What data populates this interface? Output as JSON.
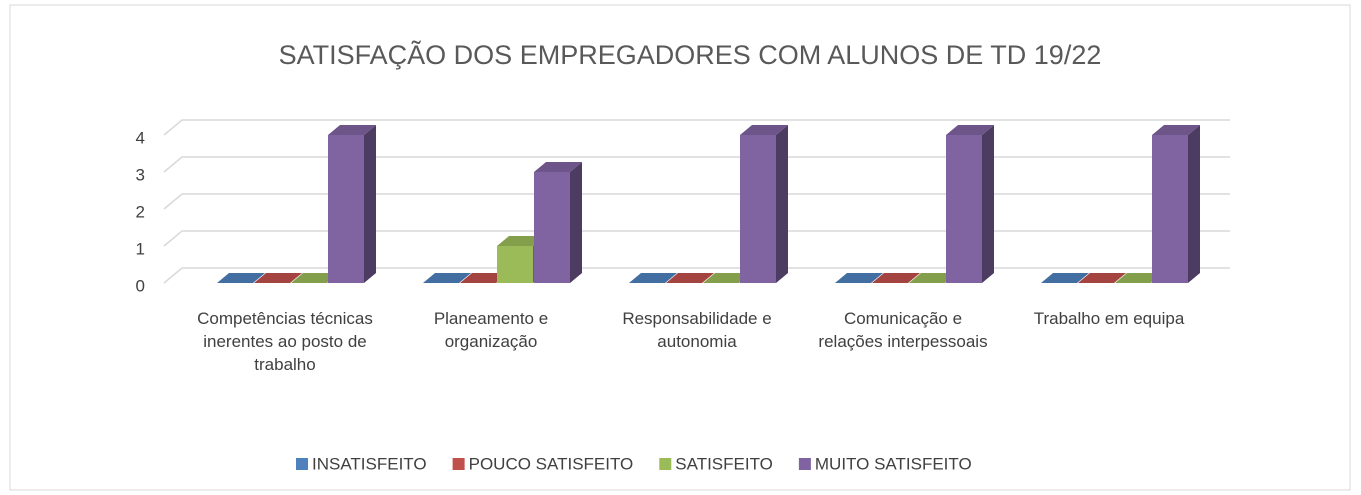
{
  "chart_data": {
    "type": "bar",
    "title": "SATISFAÇÃO DOS EMPREGADORES COM ALUNOS DE TD 19/22",
    "categories": [
      "Competências técnicas inerentes ao posto de trabalho",
      "Planeamento e organização",
      "Responsabilidade e autonomia",
      "Comunicação e relações interpessoais",
      "Trabalho em equipa"
    ],
    "series": [
      {
        "name": "INSATISFEITO",
        "color": "#4f81bd",
        "values": [
          0,
          0,
          0,
          0,
          0
        ]
      },
      {
        "name": "POUCO SATISFEITO",
        "color": "#c0504d",
        "values": [
          0,
          0,
          0,
          0,
          0
        ]
      },
      {
        "name": "SATISFEITO",
        "color": "#9bbb59",
        "values": [
          0,
          1,
          0,
          0,
          0
        ]
      },
      {
        "name": "MUITO SATISFEITO",
        "color": "#8064a2",
        "values": [
          4,
          3,
          4,
          4,
          4
        ]
      }
    ],
    "ylim": [
      0,
      4
    ],
    "yticks": [
      0,
      1,
      2,
      3,
      4
    ],
    "grid": true,
    "legend": "bottom"
  }
}
